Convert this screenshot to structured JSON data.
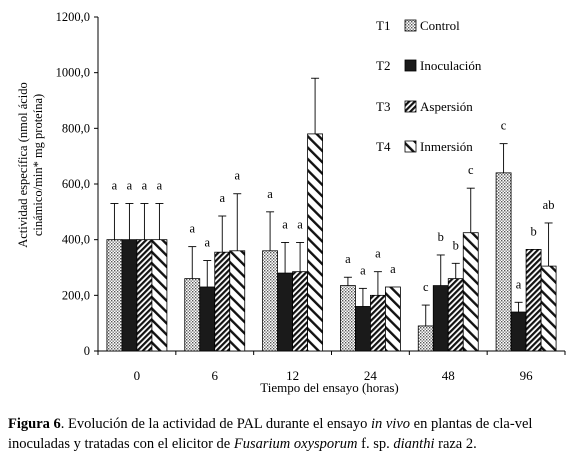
{
  "chart_data": {
    "type": "bar",
    "xlabel": "Tiempo del ensayo (horas)",
    "ylabel_lines": [
      "Actividad específica (nmol ácido",
      "cinámico/min* mg proteína)"
    ],
    "ylim": [
      0,
      1200
    ],
    "yticks": [
      0,
      200,
      400,
      600,
      800,
      1000,
      1200
    ],
    "ytick_labels": [
      "0",
      "200,0",
      "400,0",
      "600,0",
      "800,0",
      "1000,0",
      "1200,0"
    ],
    "categories": [
      "0",
      "6",
      "12",
      "24",
      "48",
      "96"
    ],
    "series": [
      {
        "code": "T1",
        "name": "Control",
        "pattern": "dots",
        "values": [
          400,
          260,
          360,
          235,
          90,
          640
        ],
        "errors": [
          130,
          115,
          140,
          30,
          75,
          105
        ],
        "letters": [
          "a",
          "a",
          "a",
          "a",
          "c",
          "c"
        ]
      },
      {
        "code": "T2",
        "name": "Inoculación",
        "pattern": "solid",
        "values": [
          400,
          230,
          280,
          160,
          235,
          140
        ],
        "errors": [
          130,
          95,
          110,
          65,
          110,
          35
        ],
        "letters": [
          "a",
          "a",
          "a",
          "a",
          "b",
          "a"
        ]
      },
      {
        "code": "T3",
        "name": "Aspersión",
        "pattern": "hatch-dense",
        "values": [
          400,
          355,
          285,
          200,
          260,
          365
        ],
        "errors": [
          130,
          130,
          105,
          85,
          55,
          0
        ],
        "letters": [
          "a",
          "a",
          "a",
          "a",
          "b",
          "b"
        ]
      },
      {
        "code": "T4",
        "name": "Inmersión",
        "pattern": "hatch-wide",
        "values": [
          400,
          360,
          780,
          230,
          425,
          305
        ],
        "errors": [
          130,
          205,
          200,
          0,
          160,
          155
        ],
        "letters": [
          "a",
          "a",
          "",
          "a",
          "c",
          "ab"
        ]
      }
    ],
    "legend_position": "top-right",
    "grid": false
  },
  "caption": {
    "label": "Figura 6",
    "text1": ". Evolución de la actividad de PAL durante el ensayo ",
    "italic1": "in vivo",
    "text2": " en plantas de cla-vel inoculadas y tratadas con el elicitor de ",
    "italic2": "Fusarium oxysporum",
    "text3": " f. sp. ",
    "italic3": "dianthi",
    "text4": " raza 2."
  }
}
